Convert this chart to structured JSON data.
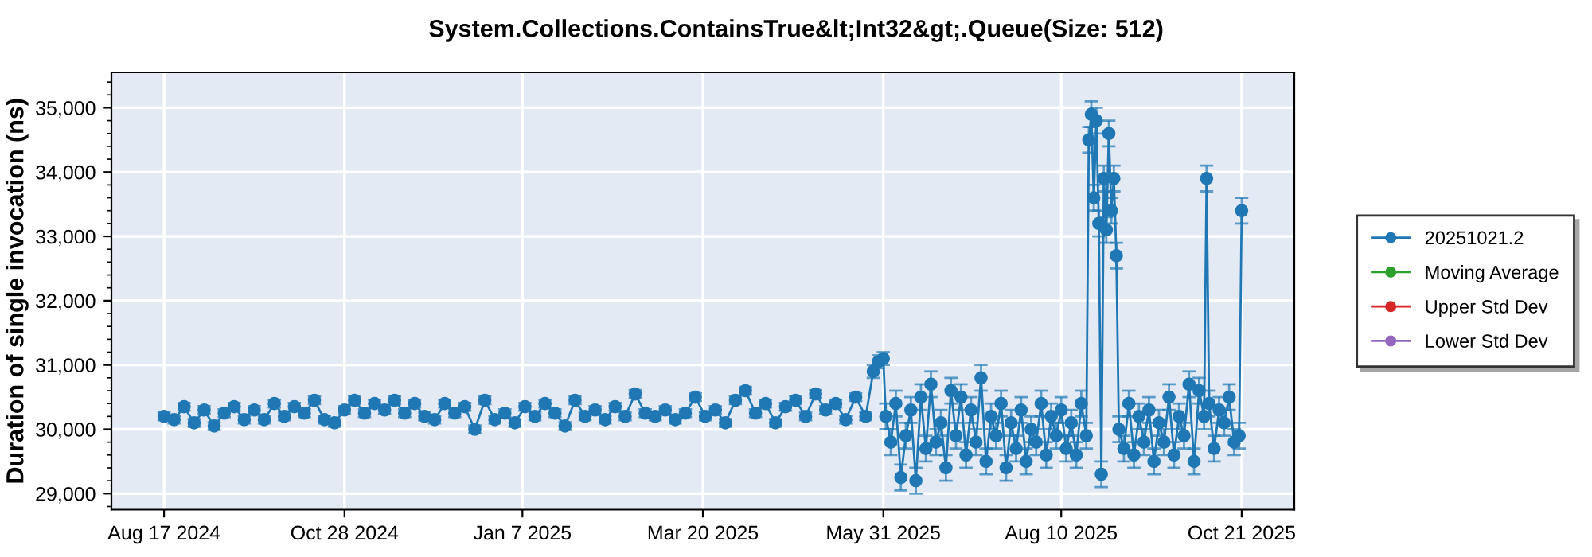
{
  "chart_data": {
    "type": "line",
    "title": "System.Collections.ContainsTrue&lt;Int32&gt;.Queue(Size: 512)",
    "ylabel": "Duration of single invocation (ns)",
    "xlim": [
      "2024-07-27",
      "2025-11-11"
    ],
    "ylim": [
      28750,
      35550
    ],
    "xticks": [
      {
        "value": "2024-08-17",
        "label": "Aug 17 2024"
      },
      {
        "value": "2024-10-28",
        "label": "Oct 28 2024"
      },
      {
        "value": "2025-01-07",
        "label": "Jan 7 2025"
      },
      {
        "value": "2025-03-20",
        "label": "Mar 20 2025"
      },
      {
        "value": "2025-05-31",
        "label": "May 31 2025"
      },
      {
        "value": "2025-08-10",
        "label": "Aug 10 2025"
      },
      {
        "value": "2025-10-21",
        "label": "Oct 21 2025"
      }
    ],
    "yticks": [
      {
        "value": 29000,
        "label": "29,000"
      },
      {
        "value": 30000,
        "label": "30,000"
      },
      {
        "value": 31000,
        "label": "31,000"
      },
      {
        "value": 32000,
        "label": "32,000"
      },
      {
        "value": 33000,
        "label": "33,000"
      },
      {
        "value": 34000,
        "label": "34,000"
      },
      {
        "value": 35000,
        "label": "35,000"
      }
    ],
    "grid": true,
    "legend": "right",
    "marker": "circle",
    "line_style": "solid",
    "series": [
      {
        "name": "20251021.2",
        "color": "#1f77b4",
        "x": [
          "2024-08-17",
          "2024-08-21",
          "2024-08-25",
          "2024-08-29",
          "2024-09-02",
          "2024-09-06",
          "2024-09-10",
          "2024-09-14",
          "2024-09-18",
          "2024-09-22",
          "2024-09-26",
          "2024-09-30",
          "2024-10-04",
          "2024-10-08",
          "2024-10-12",
          "2024-10-16",
          "2024-10-20",
          "2024-10-24",
          "2024-10-28",
          "2024-11-01",
          "2024-11-05",
          "2024-11-09",
          "2024-11-13",
          "2024-11-17",
          "2024-11-21",
          "2024-11-25",
          "2024-11-29",
          "2024-12-03",
          "2024-12-07",
          "2024-12-11",
          "2024-12-15",
          "2024-12-19",
          "2024-12-23",
          "2024-12-27",
          "2024-12-31",
          "2025-01-04",
          "2025-01-08",
          "2025-01-12",
          "2025-01-16",
          "2025-01-20",
          "2025-01-24",
          "2025-01-28",
          "2025-02-01",
          "2025-02-05",
          "2025-02-09",
          "2025-02-13",
          "2025-02-17",
          "2025-02-21",
          "2025-02-25",
          "2025-03-01",
          "2025-03-05",
          "2025-03-09",
          "2025-03-13",
          "2025-03-17",
          "2025-03-21",
          "2025-03-25",
          "2025-03-29",
          "2025-04-02",
          "2025-04-06",
          "2025-04-10",
          "2025-04-14",
          "2025-04-18",
          "2025-04-22",
          "2025-04-26",
          "2025-04-30",
          "2025-05-04",
          "2025-05-08",
          "2025-05-12",
          "2025-05-16",
          "2025-05-20",
          "2025-05-24",
          "2025-05-27",
          "2025-05-29",
          "2025-05-31",
          "2025-06-01",
          "2025-06-03",
          "2025-06-05",
          "2025-06-07",
          "2025-06-09",
          "2025-06-11",
          "2025-06-13",
          "2025-06-15",
          "2025-06-17",
          "2025-06-19",
          "2025-06-21",
          "2025-06-23",
          "2025-06-25",
          "2025-06-27",
          "2025-06-29",
          "2025-07-01",
          "2025-07-03",
          "2025-07-05",
          "2025-07-07",
          "2025-07-09",
          "2025-07-11",
          "2025-07-13",
          "2025-07-15",
          "2025-07-17",
          "2025-07-19",
          "2025-07-21",
          "2025-07-23",
          "2025-07-25",
          "2025-07-27",
          "2025-07-29",
          "2025-07-31",
          "2025-08-02",
          "2025-08-04",
          "2025-08-06",
          "2025-08-08",
          "2025-08-10",
          "2025-08-12",
          "2025-08-14",
          "2025-08-16",
          "2025-08-18",
          "2025-08-20",
          "2025-08-21",
          "2025-08-22",
          "2025-08-23",
          "2025-08-24",
          "2025-08-25",
          "2025-08-26",
          "2025-08-27",
          "2025-08-28",
          "2025-08-29",
          "2025-08-30",
          "2025-08-31",
          "2025-09-01",
          "2025-09-02",
          "2025-09-04",
          "2025-09-06",
          "2025-09-08",
          "2025-09-10",
          "2025-09-12",
          "2025-09-14",
          "2025-09-16",
          "2025-09-18",
          "2025-09-20",
          "2025-09-22",
          "2025-09-24",
          "2025-09-26",
          "2025-09-28",
          "2025-09-30",
          "2025-10-02",
          "2025-10-04",
          "2025-10-06",
          "2025-10-07",
          "2025-10-08",
          "2025-10-10",
          "2025-10-12",
          "2025-10-14",
          "2025-10-16",
          "2025-10-18",
          "2025-10-20",
          "2025-10-21"
        ],
        "values": [
          30200,
          30150,
          30350,
          30100,
          30300,
          30050,
          30250,
          30350,
          30150,
          30300,
          30150,
          30400,
          30200,
          30350,
          30250,
          30450,
          30150,
          30100,
          30300,
          30450,
          30250,
          30400,
          30300,
          30450,
          30250,
          30400,
          30200,
          30150,
          30400,
          30250,
          30350,
          30000,
          30450,
          30150,
          30250,
          30100,
          30350,
          30200,
          30400,
          30250,
          30050,
          30450,
          30200,
          30300,
          30150,
          30350,
          30200,
          30550,
          30250,
          30200,
          30300,
          30150,
          30250,
          30500,
          30200,
          30300,
          30100,
          30450,
          30600,
          30250,
          30400,
          30100,
          30350,
          30450,
          30200,
          30550,
          30300,
          30400,
          30150,
          30500,
          30200,
          30900,
          31050,
          31100,
          30200,
          29800,
          30400,
          29250,
          29900,
          30300,
          29200,
          30500,
          29700,
          30700,
          29800,
          30100,
          29400,
          30600,
          29900,
          30500,
          29600,
          30300,
          29800,
          30800,
          29500,
          30200,
          29900,
          30400,
          29400,
          30100,
          29700,
          30300,
          29500,
          30000,
          29800,
          30400,
          29600,
          30200,
          29900,
          30300,
          29700,
          30100,
          29600,
          30400,
          29900,
          34500,
          34900,
          33600,
          34800,
          33200,
          29300,
          33900,
          33100,
          34600,
          33400,
          33900,
          32700,
          30000,
          29700,
          30400,
          29600,
          30200,
          29800,
          30300,
          29500,
          30100,
          29800,
          30500,
          29600,
          30200,
          29900,
          30700,
          29500,
          30600,
          30200,
          33900,
          30400,
          29700,
          30300,
          30100,
          30500,
          29800,
          29900,
          33400
        ],
        "errors": [
          60,
          60,
          60,
          60,
          60,
          60,
          60,
          60,
          60,
          60,
          60,
          60,
          60,
          60,
          60,
          60,
          60,
          60,
          60,
          60,
          60,
          60,
          60,
          60,
          60,
          60,
          60,
          60,
          60,
          60,
          60,
          60,
          60,
          60,
          60,
          60,
          60,
          60,
          60,
          60,
          60,
          60,
          60,
          60,
          60,
          60,
          60,
          60,
          60,
          60,
          60,
          60,
          60,
          60,
          60,
          60,
          60,
          60,
          60,
          60,
          60,
          60,
          60,
          60,
          60,
          60,
          60,
          60,
          60,
          60,
          60,
          100,
          100,
          100,
          200,
          200,
          200,
          200,
          200,
          200,
          200,
          200,
          200,
          200,
          200,
          200,
          200,
          200,
          200,
          200,
          200,
          200,
          200,
          200,
          200,
          200,
          200,
          200,
          200,
          200,
          200,
          200,
          200,
          200,
          200,
          200,
          200,
          200,
          200,
          200,
          200,
          200,
          200,
          200,
          200,
          200,
          200,
          200,
          200,
          200,
          200,
          200,
          200,
          200,
          200,
          200,
          200,
          200,
          200,
          200,
          200,
          200,
          200,
          200,
          200,
          200,
          200,
          200,
          200,
          200,
          200,
          200,
          200,
          200,
          200,
          200,
          200,
          200,
          200,
          200,
          200,
          200,
          200,
          200
        ]
      },
      {
        "name": "Moving Average",
        "color": "#2ca02c"
      },
      {
        "name": "Upper Std Dev",
        "color": "#d62728"
      },
      {
        "name": "Lower Std Dev",
        "color": "#9467bd"
      }
    ]
  }
}
